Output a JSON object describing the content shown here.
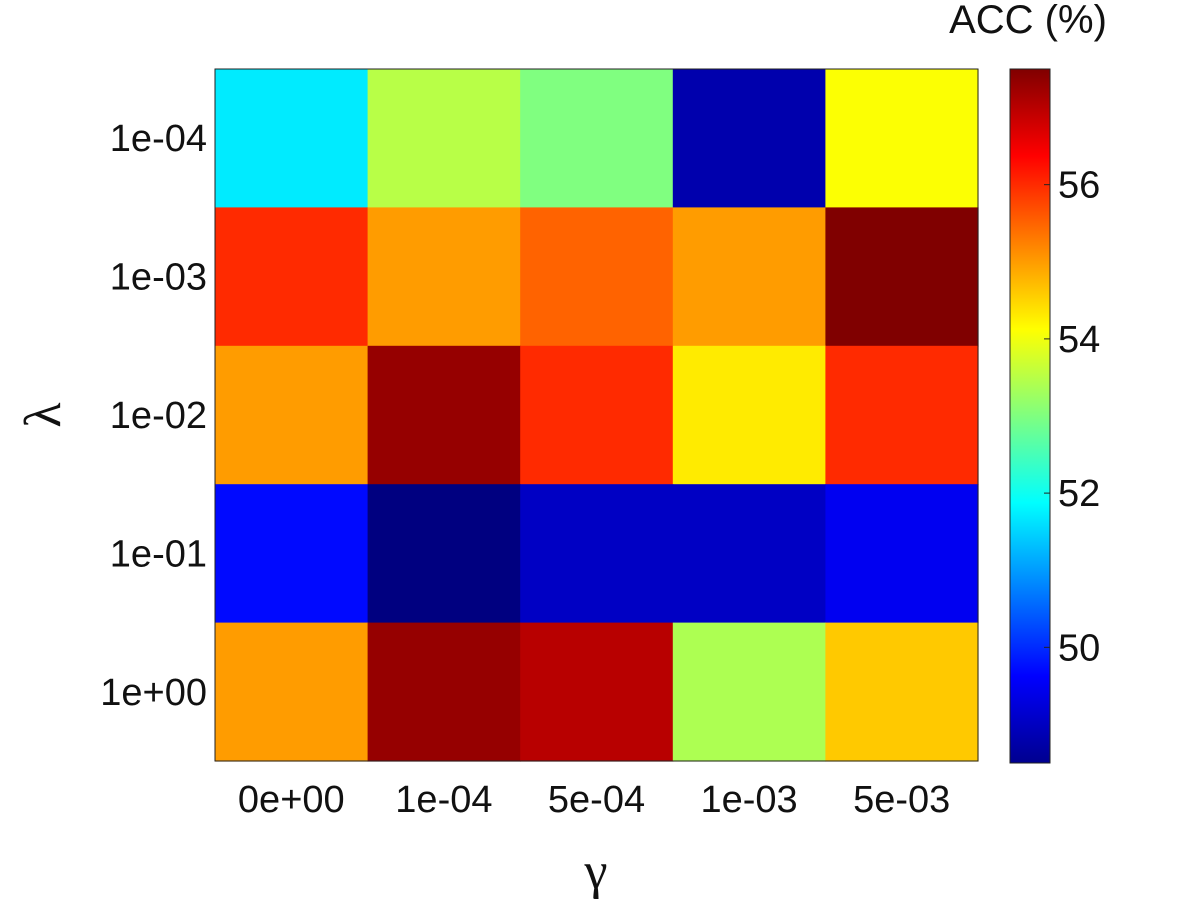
{
  "chart_data": {
    "type": "heatmap",
    "title": "",
    "xlabel": "γ",
    "ylabel": "λ",
    "x_categories": [
      "0e+00",
      "1e-04",
      "5e-04",
      "1e-03",
      "5e-03"
    ],
    "y_categories": [
      "1e-04",
      "1e-03",
      "1e-02",
      "1e-01",
      "1e+00"
    ],
    "values": [
      [
        51.7,
        53.5,
        53.0,
        48.9,
        54.1
      ],
      [
        56.0,
        55.0,
        55.5,
        55.0,
        57.5
      ],
      [
        55.0,
        57.3,
        56.0,
        54.3,
        56.0
      ],
      [
        49.7,
        48.5,
        49.1,
        49.1,
        49.5
      ],
      [
        55.0,
        57.3,
        57.0,
        53.4,
        54.6
      ]
    ],
    "colorbar": {
      "label": "ACC (%)",
      "range": [
        48.5,
        57.5
      ],
      "ticks": [
        50,
        52,
        54,
        56
      ],
      "colormap": "jet"
    },
    "grid": false,
    "legend": "none"
  }
}
